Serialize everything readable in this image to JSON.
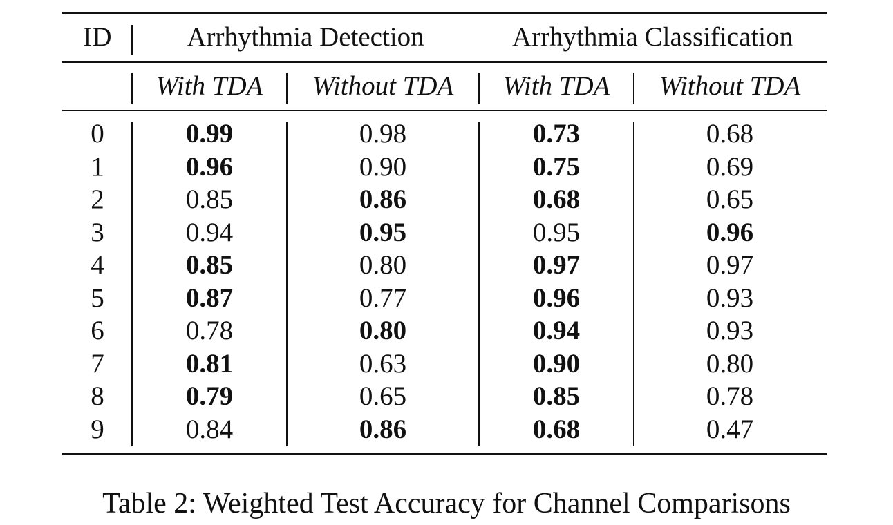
{
  "table": {
    "headers": {
      "id": "ID",
      "group_detection": "Arrhythmia Detection",
      "group_classification": "Arrhythmia Classification",
      "sub": [
        "With TDA",
        "Without TDA",
        "With TDA",
        "Without TDA"
      ]
    },
    "rows": [
      {
        "id": "0",
        "vals": [
          "0.99",
          "0.98",
          "0.73",
          "0.68"
        ],
        "bold": [
          true,
          false,
          true,
          false
        ]
      },
      {
        "id": "1",
        "vals": [
          "0.96",
          "0.90",
          "0.75",
          "0.69"
        ],
        "bold": [
          true,
          false,
          true,
          false
        ]
      },
      {
        "id": "2",
        "vals": [
          "0.85",
          "0.86",
          "0.68",
          "0.65"
        ],
        "bold": [
          false,
          true,
          true,
          false
        ]
      },
      {
        "id": "3",
        "vals": [
          "0.94",
          "0.95",
          "0.95",
          "0.96"
        ],
        "bold": [
          false,
          true,
          false,
          true
        ]
      },
      {
        "id": "4",
        "vals": [
          "0.85",
          "0.80",
          "0.97",
          "0.97"
        ],
        "bold": [
          true,
          false,
          true,
          false
        ]
      },
      {
        "id": "5",
        "vals": [
          "0.87",
          "0.77",
          "0.96",
          "0.93"
        ],
        "bold": [
          true,
          false,
          true,
          false
        ]
      },
      {
        "id": "6",
        "vals": [
          "0.78",
          "0.80",
          "0.94",
          "0.93"
        ],
        "bold": [
          false,
          true,
          true,
          false
        ]
      },
      {
        "id": "7",
        "vals": [
          "0.81",
          "0.63",
          "0.90",
          "0.80"
        ],
        "bold": [
          true,
          false,
          true,
          false
        ]
      },
      {
        "id": "8",
        "vals": [
          "0.79",
          "0.65",
          "0.85",
          "0.78"
        ],
        "bold": [
          true,
          false,
          true,
          false
        ]
      },
      {
        "id": "9",
        "vals": [
          "0.84",
          "0.86",
          "0.68",
          "0.47"
        ],
        "bold": [
          false,
          true,
          true,
          false
        ]
      }
    ]
  },
  "caption": "Table 2: Weighted Test Accuracy for Channel Comparisons"
}
